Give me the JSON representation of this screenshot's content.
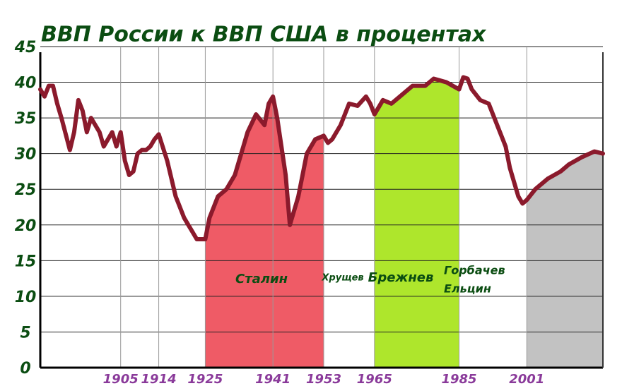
{
  "chart_data": {
    "type": "line",
    "title": "ВВП России к ВВП США в  процентах",
    "x": [
      1886,
      1887,
      1888,
      1889,
      1890,
      1891,
      1893,
      1894,
      1895,
      1896,
      1897,
      1898,
      1900,
      1901,
      1903,
      1904,
      1905,
      1906,
      1907,
      1908,
      1909,
      1910,
      1911,
      1912,
      1913,
      1914,
      1916,
      1918,
      1920,
      1923,
      1925,
      1926,
      1928,
      1930,
      1932,
      1934,
      1935,
      1937,
      1939,
      1940,
      1941,
      1942,
      1943,
      1944,
      1945,
      1946,
      1947,
      1948,
      1949,
      1951,
      1953,
      1954,
      1955,
      1957,
      1959,
      1961,
      1963,
      1964,
      1965,
      1967,
      1969,
      1971,
      1974,
      1977,
      1979,
      1982,
      1985,
      1986,
      1987,
      1988,
      1990,
      1992,
      1994,
      1996,
      1997,
      1999,
      2000,
      2001,
      2003,
      2006,
      2009,
      2011,
      2014,
      2017,
      2019
    ],
    "series": [
      {
        "color": "#8b1a2c",
        "values": [
          39,
          38,
          39.5,
          39.5,
          37,
          35,
          30.5,
          33,
          37.5,
          36,
          33,
          35,
          33,
          31,
          33,
          31,
          33,
          29,
          27,
          27.5,
          30,
          30.5,
          30.5,
          31,
          32,
          32.7,
          29,
          24,
          21,
          18,
          18,
          21,
          24,
          25,
          27,
          31,
          33,
          35.5,
          34,
          37,
          38,
          35,
          31,
          27,
          20,
          22,
          24,
          27,
          30,
          32,
          32.5,
          31.5,
          32,
          34,
          37,
          36.7,
          38,
          37,
          35.5,
          37.5,
          37,
          38,
          39.5,
          39.5,
          40.5,
          40,
          39,
          40.7,
          40.5,
          39,
          37.5,
          37,
          34,
          31,
          28,
          24,
          23,
          23.5,
          25,
          26.5,
          27.5,
          28.5,
          29.5,
          30.3,
          30
        ]
      }
    ],
    "xlim": [
      1886,
      2019
    ],
    "xticks": [
      1905,
      1914,
      1925,
      1941,
      1953,
      1965,
      1985,
      2001
    ],
    "ylim": [
      0,
      45
    ],
    "yticks": [
      0,
      5,
      10,
      15,
      20,
      25,
      30,
      35,
      40,
      45
    ],
    "grid": true,
    "periods": [
      {
        "start": 1925,
        "end": 1953,
        "color": "#ef5b66"
      },
      {
        "start": 1965,
        "end": 1985,
        "color": "#aee62c"
      },
      {
        "start": 2001,
        "end": 2019,
        "color": "#c2c2c2"
      }
    ],
    "annotations": [
      "Сталин",
      "Хрущев",
      "Брежнев",
      "Горбачев",
      "Ельцин"
    ]
  }
}
